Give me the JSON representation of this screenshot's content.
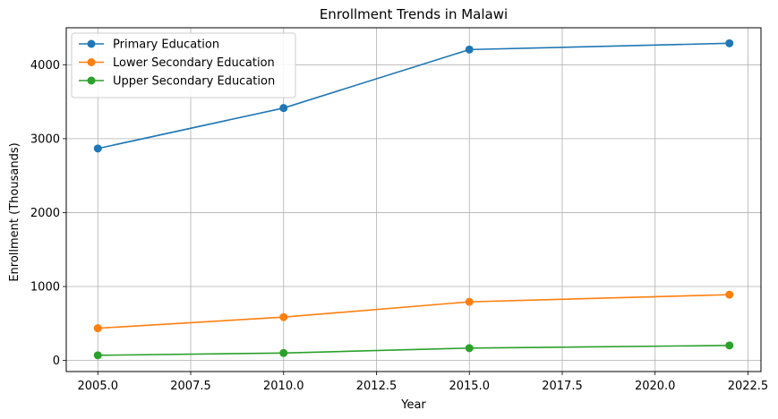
{
  "chart_data": {
    "type": "line",
    "title": "Enrollment Trends in Malawi",
    "xlabel": "Year",
    "ylabel": "Enrollment (Thousands)",
    "xlim": [
      2004.15,
      2022.85
    ],
    "ylim": [
      -150,
      4500
    ],
    "x_ticks": [
      2005.0,
      2007.5,
      2010.0,
      2012.5,
      2015.0,
      2017.5,
      2020.0,
      2022.5
    ],
    "x_tick_labels": [
      "2005.0",
      "2007.5",
      "2010.0",
      "2012.5",
      "2015.0",
      "2017.5",
      "2020.0",
      "2022.5"
    ],
    "y_ticks": [
      0,
      1000,
      2000,
      3000,
      4000
    ],
    "y_tick_labels": [
      "0",
      "1000",
      "2000",
      "3000",
      "4000"
    ],
    "grid": true,
    "legend_position": "top-left",
    "x": [
      2005,
      2010,
      2015,
      2022
    ],
    "series": [
      {
        "name": "Primary Education",
        "color": "#1f77b4",
        "values": [
          2867,
          3414,
          4205,
          4290
        ]
      },
      {
        "name": "Lower Secondary Education",
        "color": "#ff7f0e",
        "values": [
          436,
          586,
          793,
          890
        ]
      },
      {
        "name": "Upper Secondary Education",
        "color": "#2ca02c",
        "values": [
          70,
          101,
          167,
          203
        ]
      }
    ]
  }
}
